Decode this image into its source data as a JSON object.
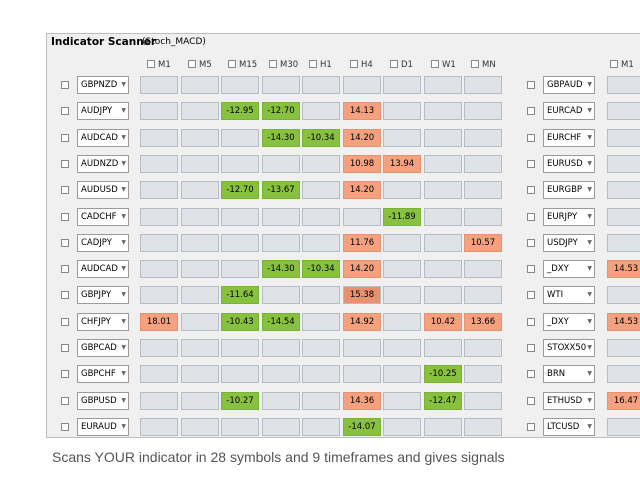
{
  "window": {
    "title": "Indicator Scanner",
    "subtitle": "(Stoch_MACD)"
  },
  "timeframes": [
    "M1",
    "M5",
    "M15",
    "M30",
    "H1",
    "H4",
    "D1",
    "W1",
    "MN"
  ],
  "right_timeframe": "M1",
  "left_rows": [
    {
      "symbol": "GBPNZD",
      "cells": [
        [
          "",
          ""
        ],
        [
          "",
          ""
        ],
        [
          "",
          ""
        ],
        [
          "",
          ""
        ],
        [
          "",
          ""
        ],
        [
          "",
          ""
        ],
        [
          "",
          ""
        ],
        [
          "",
          ""
        ],
        [
          "",
          ""
        ]
      ]
    },
    {
      "symbol": "AUDJPY",
      "cells": [
        [
          "",
          ""
        ],
        [
          "",
          ""
        ],
        [
          "-12.95",
          "g"
        ],
        [
          "-12.70",
          "g"
        ],
        [
          "",
          ""
        ],
        [
          "14.13",
          "r"
        ],
        [
          "",
          ""
        ],
        [
          "",
          ""
        ],
        [
          "",
          ""
        ]
      ]
    },
    {
      "symbol": "AUDCAD",
      "cells": [
        [
          "",
          ""
        ],
        [
          "",
          ""
        ],
        [
          "",
          ""
        ],
        [
          "-14.30",
          "g"
        ],
        [
          "-10.34",
          "g"
        ],
        [
          "14.20",
          "r"
        ],
        [
          "",
          ""
        ],
        [
          "",
          ""
        ],
        [
          "",
          ""
        ]
      ]
    },
    {
      "symbol": "AUDNZD",
      "cells": [
        [
          "",
          ""
        ],
        [
          "",
          ""
        ],
        [
          "",
          ""
        ],
        [
          "",
          ""
        ],
        [
          "",
          ""
        ],
        [
          "10.98",
          "r"
        ],
        [
          "13.94",
          "r"
        ],
        [
          "",
          ""
        ],
        [
          "",
          ""
        ]
      ]
    },
    {
      "symbol": "AUDUSD",
      "cells": [
        [
          "",
          ""
        ],
        [
          "",
          ""
        ],
        [
          "-12.70",
          "g"
        ],
        [
          "-13.67",
          "g"
        ],
        [
          "",
          ""
        ],
        [
          "14.20",
          "r"
        ],
        [
          "",
          ""
        ],
        [
          "",
          ""
        ],
        [
          "",
          ""
        ]
      ]
    },
    {
      "symbol": "CADCHF",
      "cells": [
        [
          "",
          ""
        ],
        [
          "",
          ""
        ],
        [
          "",
          ""
        ],
        [
          "",
          ""
        ],
        [
          "",
          ""
        ],
        [
          "",
          ""
        ],
        [
          "-11.89",
          "g"
        ],
        [
          "",
          ""
        ],
        [
          "",
          ""
        ]
      ]
    },
    {
      "symbol": "CADJPY",
      "cells": [
        [
          "",
          ""
        ],
        [
          "",
          ""
        ],
        [
          "",
          ""
        ],
        [
          "",
          ""
        ],
        [
          "",
          ""
        ],
        [
          "11.76",
          "r"
        ],
        [
          "",
          ""
        ],
        [
          "",
          ""
        ],
        [
          "10.57",
          "r"
        ]
      ]
    },
    {
      "symbol": "AUDCAD",
      "cells": [
        [
          "",
          ""
        ],
        [
          "",
          ""
        ],
        [
          "",
          ""
        ],
        [
          "-14.30",
          "g"
        ],
        [
          "-10.34",
          "g"
        ],
        [
          "14.20",
          "r"
        ],
        [
          "",
          ""
        ],
        [
          "",
          ""
        ],
        [
          "",
          ""
        ]
      ]
    },
    {
      "symbol": "GBPJPY",
      "cells": [
        [
          "",
          ""
        ],
        [
          "",
          ""
        ],
        [
          "-11.64",
          "g"
        ],
        [
          "",
          ""
        ],
        [
          "",
          ""
        ],
        [
          "15.38",
          "r2"
        ],
        [
          "",
          ""
        ],
        [
          "",
          ""
        ],
        [
          "",
          ""
        ]
      ]
    },
    {
      "symbol": "CHFJPY",
      "cells": [
        [
          "18.01",
          "r"
        ],
        [
          "",
          ""
        ],
        [
          "-10.43",
          "g"
        ],
        [
          "-14.54",
          "g"
        ],
        [
          "",
          ""
        ],
        [
          "14.92",
          "r"
        ],
        [
          "",
          ""
        ],
        [
          "10.42",
          "r"
        ],
        [
          "13.66",
          "r"
        ]
      ]
    },
    {
      "symbol": "GBPCAD",
      "cells": [
        [
          "",
          ""
        ],
        [
          "",
          ""
        ],
        [
          "",
          ""
        ],
        [
          "",
          ""
        ],
        [
          "",
          ""
        ],
        [
          "",
          ""
        ],
        [
          "",
          ""
        ],
        [
          "",
          ""
        ],
        [
          "",
          ""
        ]
      ]
    },
    {
      "symbol": "GBPCHF",
      "cells": [
        [
          "",
          ""
        ],
        [
          "",
          ""
        ],
        [
          "",
          ""
        ],
        [
          "",
          ""
        ],
        [
          "",
          ""
        ],
        [
          "",
          ""
        ],
        [
          "",
          ""
        ],
        [
          "-10.25",
          "g"
        ],
        [
          "",
          ""
        ]
      ]
    },
    {
      "symbol": "GBPUSD",
      "cells": [
        [
          "",
          ""
        ],
        [
          "",
          ""
        ],
        [
          "-10.27",
          "g"
        ],
        [
          "",
          ""
        ],
        [
          "",
          ""
        ],
        [
          "14.36",
          "r"
        ],
        [
          "",
          ""
        ],
        [
          "-12.47",
          "g"
        ],
        [
          "",
          ""
        ]
      ]
    },
    {
      "symbol": "EURAUD",
      "cells": [
        [
          "",
          ""
        ],
        [
          "",
          ""
        ],
        [
          "",
          ""
        ],
        [
          "",
          ""
        ],
        [
          "",
          ""
        ],
        [
          "-14.07",
          "g"
        ],
        [
          "",
          ""
        ],
        [
          "",
          ""
        ],
        [
          "",
          ""
        ]
      ]
    }
  ],
  "right_rows": [
    {
      "symbol": "GBPAUD",
      "cell": [
        "",
        ""
      ]
    },
    {
      "symbol": "EURCAD",
      "cell": [
        "",
        ""
      ]
    },
    {
      "symbol": "EURCHF",
      "cell": [
        "",
        ""
      ]
    },
    {
      "symbol": "EURUSD",
      "cell": [
        "",
        ""
      ]
    },
    {
      "symbol": "EURGBP",
      "cell": [
        "",
        ""
      ]
    },
    {
      "symbol": "EURJPY",
      "cell": [
        "",
        ""
      ]
    },
    {
      "symbol": "USDJPY",
      "cell": [
        "",
        ""
      ]
    },
    {
      "symbol": "_DXY",
      "cell": [
        "14.53",
        "r"
      ]
    },
    {
      "symbol": "WTI",
      "cell": [
        "",
        ""
      ]
    },
    {
      "symbol": "_DXY",
      "cell": [
        "14.53",
        "r"
      ]
    },
    {
      "symbol": "STOXX50",
      "cell": [
        "",
        ""
      ]
    },
    {
      "symbol": "BRN",
      "cell": [
        "",
        ""
      ]
    },
    {
      "symbol": "ETHUSD",
      "cell": [
        "16.47",
        "r"
      ]
    },
    {
      "symbol": "LTCUSD",
      "cell": [
        "",
        ""
      ]
    }
  ],
  "caption": "Scans YOUR indicator in 28 symbols and 9 timeframes and gives signals",
  "colors": {
    "buy": "#88c140",
    "sell": "#f5a07e",
    "empty": "#dfe3e8"
  },
  "icons": {
    "checkbox": "checkbox-icon",
    "dropdown": "chevron-down-icon"
  }
}
